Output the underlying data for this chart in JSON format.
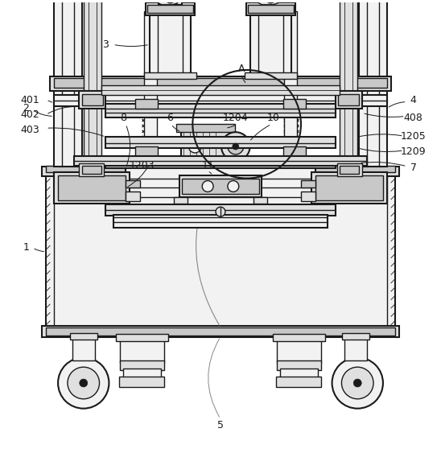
{
  "bg_color": "#ffffff",
  "line_color": "#1a1a1a",
  "fill_light": "#f2f2f2",
  "fill_mid": "#e0e0e0",
  "fill_dark": "#c8c8c8",
  "figsize": [
    5.48,
    5.63
  ],
  "dpi": 100
}
